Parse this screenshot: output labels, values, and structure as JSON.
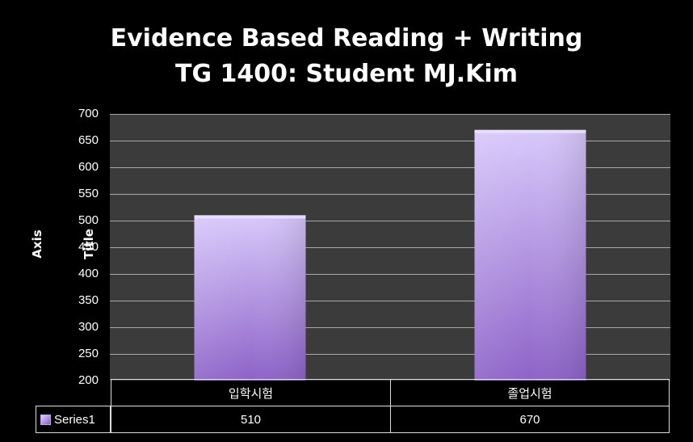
{
  "chart_data": {
    "type": "bar",
    "title": "Evidence Based Reading + Writing",
    "subtitle": "TG 1400: Student MJ.Kim",
    "ylabel": "Axis Title",
    "xlabel": "",
    "categories": [
      "입학시험",
      "졸업시험"
    ],
    "series": [
      {
        "name": "Series1",
        "values": [
          510,
          670
        ]
      }
    ],
    "ylim": [
      200,
      700
    ],
    "yticks": [
      700,
      650,
      600,
      550,
      500,
      450,
      400,
      350,
      300,
      250,
      200
    ],
    "grid": true,
    "legend": "data-table",
    "colors": {
      "bar_top": "#d8c8fb",
      "bar_bottom": "#8d62c8",
      "plot_bg": "#3b3b3b",
      "grid": "#a8a8a8"
    }
  }
}
